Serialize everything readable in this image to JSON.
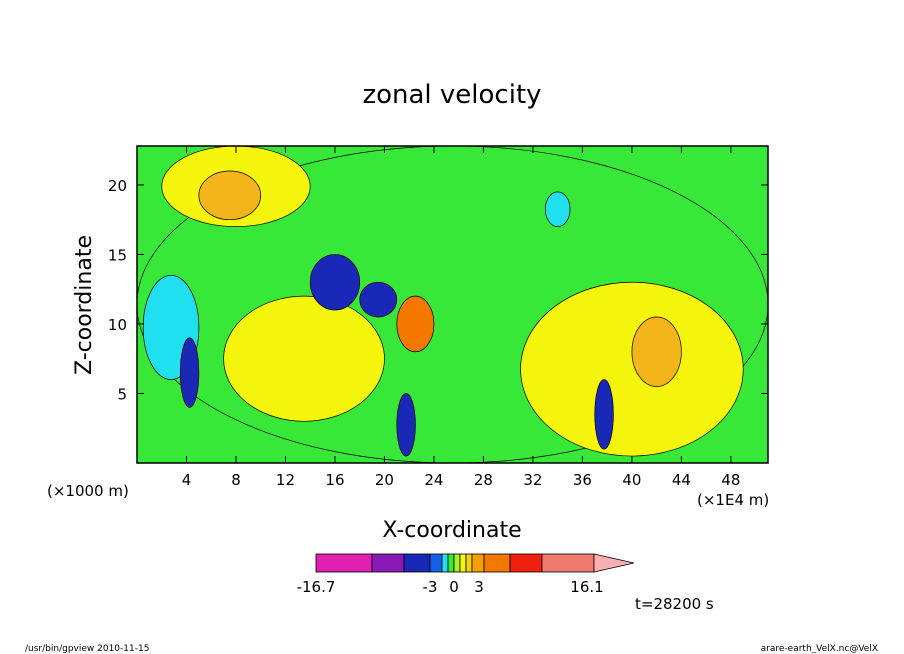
{
  "chart_data": {
    "type": "heatmap",
    "title": "zonal velocity",
    "xlabel": "X-coordinate",
    "ylabel": "Z-coordinate",
    "x_unit_left": "(×1000 m)",
    "x_unit_right": "(×1E4 m)",
    "x_ticks": [
      "4",
      "8",
      "12",
      "16",
      "20",
      "24",
      "28",
      "32",
      "36",
      "40",
      "44",
      "48"
    ],
    "y_ticks": [
      "5",
      "10",
      "15",
      "20"
    ],
    "xlim": [
      0,
      51
    ],
    "ylim": [
      0,
      22.8
    ],
    "colorbar": {
      "labels": [
        "-16.7",
        "-3",
        "0",
        "3",
        "16.1"
      ],
      "colors": [
        "#e020b0",
        "#8a1ab8",
        "#1a28b8",
        "#1260e8",
        "#20e0f0",
        "#38e838",
        "#a8f020",
        "#f4f40c",
        "#f8d000",
        "#f4a000",
        "#f47800",
        "#f02010",
        "#f07a70",
        "#f8b0b0"
      ]
    },
    "regions": [
      {
        "level": "green",
        "x": [
          0,
          51
        ],
        "z": [
          0,
          22.8
        ]
      },
      {
        "level": "yellow",
        "x": [
          2,
          14
        ],
        "z": [
          17,
          22.8
        ]
      },
      {
        "level": "yellow",
        "x": [
          31,
          49
        ],
        "z": [
          0.5,
          13
        ]
      },
      {
        "level": "yellow",
        "x": [
          7,
          20
        ],
        "z": [
          3,
          12
        ]
      },
      {
        "level": "light-orange",
        "x": [
          40,
          44
        ],
        "z": [
          5.5,
          10.5
        ]
      },
      {
        "level": "light-orange",
        "x": [
          5,
          10
        ],
        "z": [
          17.5,
          21
        ]
      },
      {
        "level": "cyan",
        "x": [
          0.5,
          5
        ],
        "z": [
          6,
          13.5
        ]
      },
      {
        "level": "blue",
        "x": [
          14,
          18
        ],
        "z": [
          11,
          15
        ]
      },
      {
        "level": "blue",
        "x": [
          18,
          21
        ],
        "z": [
          10.5,
          13
        ]
      },
      {
        "level": "cyan",
        "x": [
          33,
          35
        ],
        "z": [
          17,
          19.5
        ]
      },
      {
        "level": "orange",
        "x": [
          21,
          24
        ],
        "z": [
          8,
          12
        ]
      },
      {
        "level": "blue",
        "x": [
          21,
          22.5
        ],
        "z": [
          0.5,
          5
        ]
      },
      {
        "level": "blue",
        "x": [
          37,
          38.5
        ],
        "z": [
          1,
          6
        ]
      },
      {
        "level": "blue",
        "x": [
          3.5,
          5
        ],
        "z": [
          4,
          9
        ]
      }
    ],
    "annotation": "t=28200 s"
  },
  "footer": {
    "left": "/usr/bin/gpview   2010-11-15",
    "right": "arare-earth_VelX.nc@VelX"
  }
}
